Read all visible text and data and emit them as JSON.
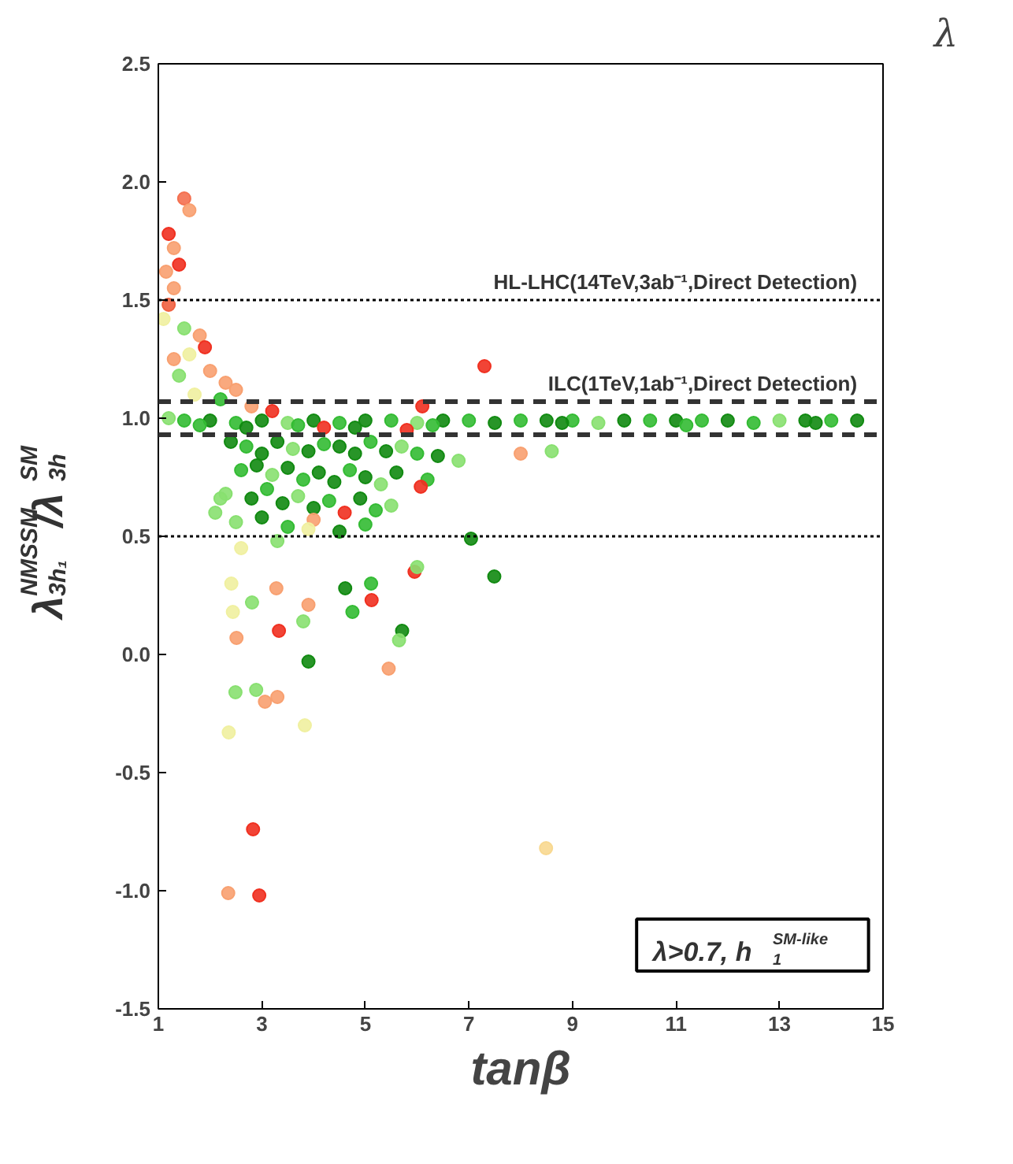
{
  "chart_data": {
    "type": "scatter",
    "xlabel": "tanβ",
    "ylabel": "λ$_{3h₁}$$^{NMSSM}$/λ$_{3h}$$^{SM}$",
    "clabel": "λ",
    "xlim": [
      1,
      15
    ],
    "ylim": [
      -1.5,
      2.5
    ],
    "xticks": [
      1,
      3,
      5,
      7,
      9,
      11,
      13,
      15
    ],
    "yticks": [
      {
        "value": -1.5,
        "label": "-1.5"
      },
      {
        "value": -1,
        "label": "-1.0"
      },
      {
        "value": -0.5,
        "label": "-0.5"
      },
      {
        "value": 0,
        "label": "0.0"
      },
      {
        "value": 0.5,
        "label": "0.5"
      },
      {
        "value": 1,
        "label": "1.0"
      },
      {
        "value": 1.5,
        "label": "1.5"
      },
      {
        "value": 2,
        "label": "2.0"
      },
      {
        "value": 2.5,
        "label": "2.5"
      }
    ],
    "grid": false,
    "marker": "circle",
    "ref_lines": [
      {
        "axis": "y",
        "value": 1.5,
        "label": "HL-LHC(14TeV,3ab⁻¹,Direct Detection)",
        "line_style": "dotted",
        "color": "#000000"
      },
      {
        "axis": "y",
        "value": 1.07,
        "label": "ILC(1TeV,1ab⁻¹,Direct Detection)",
        "line_style": "dashed",
        "color": "#333333"
      },
      {
        "axis": "y",
        "value": 0.93,
        "label": null,
        "line_style": "dashed",
        "color": "#333333"
      },
      {
        "axis": "y",
        "value": 0.5,
        "label": null,
        "line_style": "dotted",
        "color": "#000000"
      }
    ],
    "annotations": [
      "λ>0.7, h$_{1}$$^{SM-like}$"
    ],
    "x": [
      1.5,
      1.6,
      1.2,
      1.3,
      1.4,
      1.15,
      1.3,
      1.2,
      1.1,
      1.5,
      1.8,
      1.9,
      1.6,
      1.3,
      2.0,
      1.4,
      2.3,
      2.5,
      1.7,
      2.2,
      2.8,
      3.2,
      7.3,
      6.1,
      1.5,
      2.0,
      2.5,
      3.0,
      3.5,
      4.0,
      4.5,
      5.0,
      5.5,
      6.0,
      6.5,
      7.0,
      7.5,
      8.0,
      8.5,
      9.0,
      9.5,
      10.0,
      10.5,
      11.0,
      11.5,
      12.0,
      12.5,
      13.0,
      13.5,
      14.0,
      14.5,
      1.2,
      1.8,
      2.7,
      3.7,
      4.8,
      6.3,
      8.8,
      11.2,
      13.7,
      5.8,
      4.2,
      8.0,
      8.6,
      2.4,
      2.7,
      3.0,
      3.3,
      3.6,
      3.9,
      4.2,
      4.5,
      4.8,
      5.1,
      5.4,
      5.7,
      6.0,
      6.4,
      6.8,
      2.6,
      2.9,
      3.2,
      3.5,
      3.8,
      4.1,
      4.4,
      4.7,
      5.0,
      5.3,
      5.6,
      6.2,
      2.3,
      2.8,
      3.1,
      3.4,
      3.7,
      4.0,
      4.3,
      4.6,
      4.9,
      5.2,
      5.5,
      2.5,
      3.0,
      3.5,
      4.0,
      4.5,
      5.0,
      2.1,
      2.2,
      2.6,
      3.3,
      3.9,
      6.07,
      7.04,
      7.49,
      5.95,
      6.0,
      5.11,
      5.12,
      4.61,
      4.75,
      5.71,
      5.65,
      5.45,
      3.9,
      3.33,
      2.51,
      2.44,
      2.41,
      2.81,
      3.28,
      3.9,
      3.8,
      2.49,
      2.89,
      3.06,
      3.3,
      2.36,
      3.83,
      2.83,
      2.35,
      2.95,
      8.49
    ],
    "values": [
      1.93,
      1.88,
      1.78,
      1.72,
      1.65,
      1.62,
      1.55,
      1.48,
      1.42,
      1.38,
      1.35,
      1.3,
      1.27,
      1.25,
      1.2,
      1.18,
      1.15,
      1.12,
      1.1,
      1.08,
      1.05,
      1.03,
      1.22,
      1.05,
      0.99,
      0.99,
      0.98,
      0.99,
      0.98,
      0.99,
      0.98,
      0.99,
      0.99,
      0.98,
      0.99,
      0.99,
      0.98,
      0.99,
      0.99,
      0.99,
      0.98,
      0.99,
      0.99,
      0.99,
      0.99,
      0.99,
      0.98,
      0.99,
      0.99,
      0.99,
      0.99,
      1.0,
      0.97,
      0.96,
      0.97,
      0.96,
      0.97,
      0.98,
      0.97,
      0.98,
      0.95,
      0.96,
      0.85,
      0.86,
      0.9,
      0.88,
      0.85,
      0.9,
      0.87,
      0.86,
      0.89,
      0.88,
      0.85,
      0.9,
      0.86,
      0.88,
      0.85,
      0.84,
      0.82,
      0.78,
      0.8,
      0.76,
      0.79,
      0.74,
      0.77,
      0.73,
      0.78,
      0.75,
      0.72,
      0.77,
      0.74,
      0.68,
      0.66,
      0.7,
      0.64,
      0.67,
      0.62,
      0.65,
      0.6,
      0.66,
      0.61,
      0.63,
      0.56,
      0.58,
      0.54,
      0.57,
      0.52,
      0.55,
      0.6,
      0.66,
      0.45,
      0.48,
      0.53,
      0.71,
      0.49,
      0.33,
      0.35,
      0.37,
      0.3,
      0.23,
      0.28,
      0.18,
      0.1,
      0.06,
      -0.06,
      -0.03,
      0.1,
      0.07,
      0.18,
      0.3,
      0.22,
      0.28,
      0.21,
      0.14,
      -0.16,
      -0.15,
      -0.2,
      -0.18,
      -0.33,
      -0.3,
      -0.74,
      -1.01,
      -1.02,
      -0.82
    ],
    "colors": [
      "#f47050",
      "#f8a070",
      "#f03020",
      "#f8a070",
      "#f03020",
      "#f8a070",
      "#f8a070",
      "#f06040",
      "#f0f0a0",
      "#88e070",
      "#f8a070",
      "#f03020",
      "#f0f0a0",
      "#f8a070",
      "#f8a070",
      "#88e070",
      "#f8a070",
      "#f8a070",
      "#f0f0a0",
      "#33bb33",
      "#f8a070",
      "#f03020",
      "#f03020",
      "#f03020",
      "#33bb33",
      "#118a11",
      "#33bb33",
      "#118a11",
      "#88e070",
      "#118a11",
      "#33bb33",
      "#118a11",
      "#33bb33",
      "#88e070",
      "#118a11",
      "#33bb33",
      "#118a11",
      "#33bb33",
      "#118a11",
      "#33bb33",
      "#88e070",
      "#118a11",
      "#33bb33",
      "#118a11",
      "#33bb33",
      "#118a11",
      "#33bb33",
      "#88e070",
      "#118a11",
      "#33bb33",
      "#118a11",
      "#88e070",
      "#33bb33",
      "#118a11",
      "#33bb33",
      "#118a11",
      "#33bb33",
      "#118a11",
      "#33bb33",
      "#118a11",
      "#f03020",
      "#f03020",
      "#f8a070",
      "#88e070",
      "#118a11",
      "#33bb33",
      "#118a11",
      "#118a11",
      "#88e070",
      "#118a11",
      "#33bb33",
      "#118a11",
      "#118a11",
      "#33bb33",
      "#118a11",
      "#88e070",
      "#33bb33",
      "#118a11",
      "#88e070",
      "#33bb33",
      "#118a11",
      "#88e070",
      "#118a11",
      "#33bb33",
      "#118a11",
      "#118a11",
      "#33bb33",
      "#118a11",
      "#88e070",
      "#118a11",
      "#33bb33",
      "#88e070",
      "#118a11",
      "#33bb33",
      "#118a11",
      "#88e070",
      "#118a11",
      "#33bb33",
      "#f03020",
      "#118a11",
      "#33bb33",
      "#88e070",
      "#88e070",
      "#118a11",
      "#33bb33",
      "#f8a070",
      "#118a11",
      "#33bb33",
      "#88e070",
      "#88e070",
      "#f0f0a0",
      "#88e070",
      "#f0f0a0",
      "#f03020",
      "#118a11",
      "#118a11",
      "#f03020",
      "#88e070",
      "#33bb33",
      "#f03020",
      "#118a11",
      "#33bb33",
      "#118a11",
      "#88e070",
      "#f8a070",
      "#118a11",
      "#f03020",
      "#f8a070",
      "#f0f0a0",
      "#f0f0a0",
      "#88e070",
      "#f8a070",
      "#f8a070",
      "#88e070",
      "#88e070",
      "#88e070",
      "#f8a070",
      "#f8a070",
      "#f0f0a0",
      "#f0f0a0",
      "#f03020",
      "#f8a070",
      "#f03020",
      "#f8d890"
    ]
  }
}
